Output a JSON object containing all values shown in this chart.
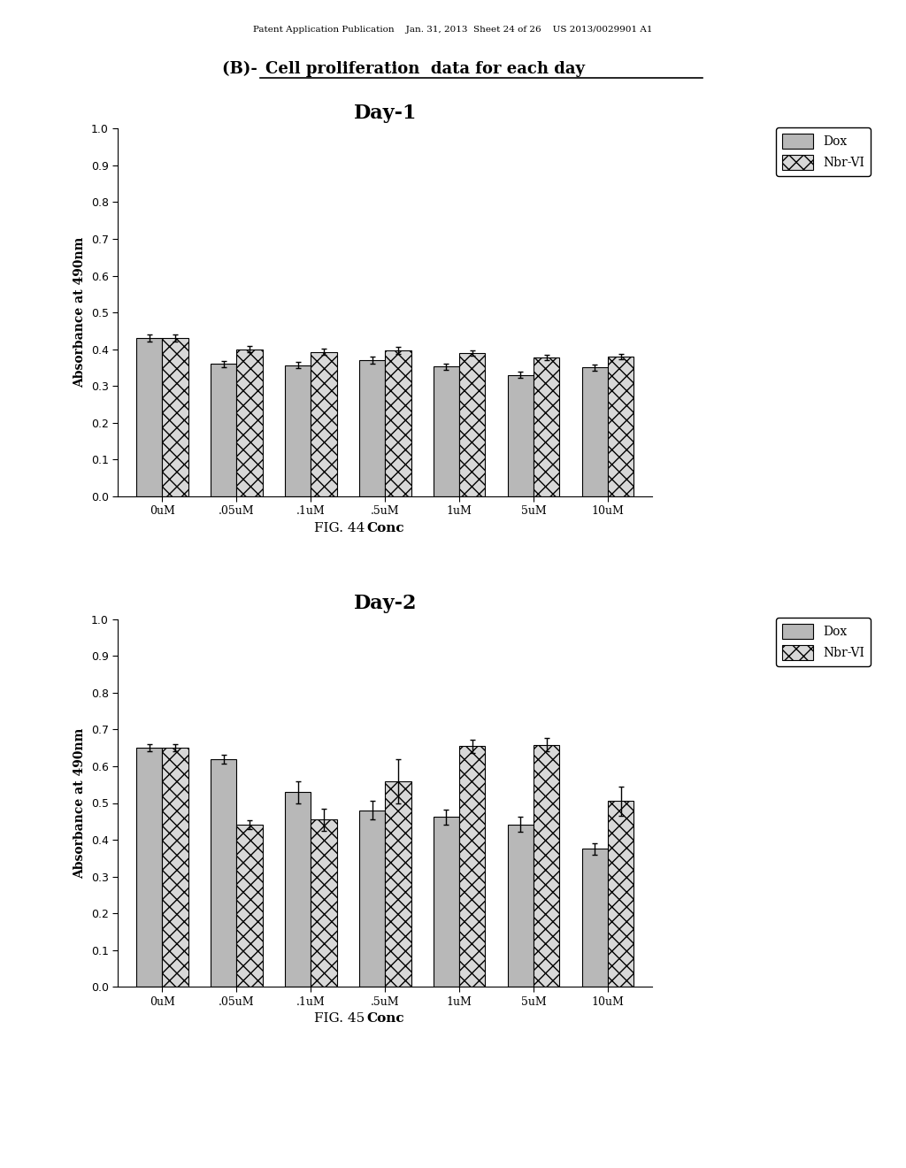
{
  "page_header": "Patent Application Publication    Jan. 31, 2013  Sheet 24 of 26    US 2013/0029901 A1",
  "main_title_prefix": "(B)- ",
  "main_title_underlined": "Cell proliferation  data for each day",
  "categories": [
    "0uM",
    ".05uM",
    ".1uM",
    ".5uM",
    "1uM",
    "5uM",
    "10uM"
  ],
  "xlabel": "Conc",
  "ylabel": "Absorbance at 490nm",
  "ylim": [
    0.0,
    1.0
  ],
  "yticks": [
    0.0,
    0.1,
    0.2,
    0.3,
    0.4,
    0.5,
    0.6,
    0.7,
    0.8,
    0.9,
    1.0
  ],
  "day1_title": "Day-1",
  "day1_dox": [
    0.43,
    0.36,
    0.357,
    0.37,
    0.353,
    0.33,
    0.35
  ],
  "day1_nbr": [
    0.43,
    0.4,
    0.393,
    0.397,
    0.39,
    0.378,
    0.38
  ],
  "day1_dox_err": [
    0.01,
    0.008,
    0.008,
    0.01,
    0.008,
    0.008,
    0.008
  ],
  "day1_nbr_err": [
    0.01,
    0.008,
    0.008,
    0.01,
    0.008,
    0.008,
    0.008
  ],
  "day2_title": "Day-2",
  "day2_dox": [
    0.65,
    0.62,
    0.53,
    0.48,
    0.462,
    0.442,
    0.375
  ],
  "day2_nbr": [
    0.65,
    0.44,
    0.455,
    0.56,
    0.655,
    0.658,
    0.505
  ],
  "day2_dox_err": [
    0.01,
    0.012,
    0.03,
    0.025,
    0.02,
    0.02,
    0.015
  ],
  "day2_nbr_err": [
    0.01,
    0.012,
    0.03,
    0.06,
    0.018,
    0.018,
    0.04
  ],
  "fig1_caption": "FIG. 44",
  "fig2_caption": "FIG. 45",
  "dox_color": "#b8b8b8",
  "nbr_color": "#d8d8d8",
  "nbr_hatch": "xx",
  "bar_edgecolor": "#000000",
  "background_color": "#ffffff"
}
